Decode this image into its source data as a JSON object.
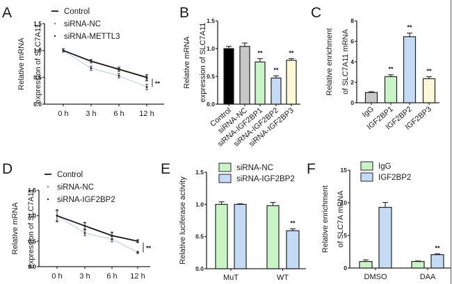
{
  "figure": {
    "panel_labels": [
      "A",
      "B",
      "C",
      "D",
      "E",
      "F"
    ],
    "colors": {
      "black": "#000000",
      "gray": "#c8c8c8",
      "green": "#c9f5c6",
      "blue": "#c5dbf5",
      "yellow": "#fbf8d6",
      "line_nc": "#c9ecc6",
      "line_kd": "#c5d6ee"
    }
  },
  "chart_data": [
    {
      "panel": "A",
      "type": "line",
      "title": "",
      "xlabel": "",
      "ylabel": [
        "Relative mRNA",
        "expression of SLC7A11"
      ],
      "x": [
        "0 h",
        "3 h",
        "6 h",
        "12 h"
      ],
      "ylim": [
        0,
        1.5
      ],
      "yticks": [
        "0.0",
        "0.5",
        "1.0",
        "1.5"
      ],
      "legend": "top",
      "series": [
        {
          "name": "Control",
          "values": [
            1.0,
            0.8,
            0.65,
            0.5
          ],
          "errors": [
            0.03,
            0.03,
            0.04,
            0.05
          ]
        },
        {
          "name": "siRNA-NC",
          "values": [
            1.0,
            0.8,
            0.64,
            0.48
          ],
          "errors": [
            0.03,
            0.03,
            0.03,
            0.05
          ]
        },
        {
          "name": "siRNA-METTL3",
          "values": [
            1.0,
            0.67,
            0.53,
            0.32
          ],
          "errors": [
            0.03,
            0.04,
            0.04,
            0.05
          ]
        }
      ],
      "annotation": "**"
    },
    {
      "panel": "B",
      "type": "bar",
      "title": "",
      "xlabel": "",
      "ylabel": [
        "Relative mRNA",
        "expression of SLC7A11"
      ],
      "categories": [
        "Control",
        "siRNA-NC",
        "siRNA-IGF2BP1",
        "siRNA-IGF2BP2",
        "siRNA-IGF2BP3"
      ],
      "values": [
        1.0,
        1.04,
        0.76,
        0.47,
        0.79
      ],
      "errors": [
        0.04,
        0.06,
        0.06,
        0.04,
        0.03
      ],
      "significance": [
        "",
        "",
        "**",
        "**",
        "**"
      ],
      "bar_colors": [
        "black",
        "gray",
        "green",
        "blue",
        "yellow"
      ],
      "ylim": [
        0,
        1.5
      ],
      "yticks": [
        "0.0",
        "0.5",
        "1.0",
        "1.5"
      ]
    },
    {
      "panel": "C",
      "type": "bar",
      "title": "",
      "xlabel": "",
      "ylabel": [
        "Relative enrichment",
        "of SLC7A11 mRNA"
      ],
      "categories": [
        "IgG",
        "IGF2BP1",
        "IGF2BP2",
        "IGF2BP3"
      ],
      "values": [
        1.0,
        2.55,
        6.45,
        2.35
      ],
      "errors": [
        0.08,
        0.18,
        0.35,
        0.2
      ],
      "significance": [
        "",
        "**",
        "**",
        "**"
      ],
      "bar_colors": [
        "gray",
        "green",
        "blue",
        "yellow"
      ],
      "ylim": [
        0,
        8
      ],
      "yticks": [
        "0",
        "2",
        "4",
        "6",
        "8"
      ]
    },
    {
      "panel": "D",
      "type": "line",
      "title": "",
      "xlabel": "",
      "ylabel": [
        "Relative mRNA",
        "expression of SLC7A11"
      ],
      "x": [
        "0 h",
        "3 h",
        "6 h",
        "12 h"
      ],
      "ylim": [
        0,
        1.5
      ],
      "yticks": [
        "0.0",
        "0.5",
        "1.0",
        "1.5"
      ],
      "legend": "top",
      "series": [
        {
          "name": "Control",
          "values": [
            1.0,
            0.8,
            0.61,
            0.5
          ],
          "errors": [
            0.12,
            0.07,
            0.07,
            0.03
          ]
        },
        {
          "name": "siRNA-NC",
          "values": [
            1.0,
            0.8,
            0.6,
            0.5
          ],
          "errors": [
            0.1,
            0.06,
            0.06,
            0.03
          ]
        },
        {
          "name": "siRNA-IGF2BP2",
          "values": [
            1.0,
            0.66,
            0.54,
            0.28
          ],
          "errors": [
            0.1,
            0.05,
            0.05,
            0.02
          ]
        }
      ],
      "annotation": "**"
    },
    {
      "panel": "E",
      "type": "bar",
      "title": "",
      "xlabel": "",
      "ylabel": [
        "Relative luciferase activity"
      ],
      "categories": [
        "MuT",
        "WT"
      ],
      "series": [
        {
          "name": "siRNA-NC",
          "color": "green",
          "values": [
            1.0,
            0.98
          ],
          "errors": [
            0.04,
            0.05
          ],
          "significance": [
            "",
            ""
          ]
        },
        {
          "name": "siRNA-IGF2BP2",
          "color": "blue",
          "values": [
            1.0,
            0.59
          ],
          "errors": [
            0.01,
            0.03
          ],
          "significance": [
            "",
            "**"
          ]
        }
      ],
      "ylim": [
        0,
        1.5
      ],
      "yticks": [
        "0.0",
        "0.5",
        "1.0",
        "1.5"
      ],
      "legend": "top"
    },
    {
      "panel": "F",
      "type": "bar",
      "title": "",
      "xlabel": "",
      "ylabel": [
        "Relative enrichment",
        "of SLC7A mRNA"
      ],
      "categories": [
        "DMSO",
        "DAA"
      ],
      "series": [
        {
          "name": "IgG",
          "color": "green",
          "values": [
            1.0,
            1.0
          ],
          "errors": [
            0.25,
            0.08
          ],
          "significance": [
            "",
            ""
          ]
        },
        {
          "name": "IGF2BP2",
          "color": "blue",
          "values": [
            9.3,
            2.05
          ],
          "errors": [
            0.75,
            0.12
          ],
          "significance": [
            "",
            "**"
          ]
        }
      ],
      "ylim": [
        0,
        15
      ],
      "yticks": [
        "0",
        "5",
        "10",
        "15"
      ],
      "legend": "top"
    }
  ]
}
